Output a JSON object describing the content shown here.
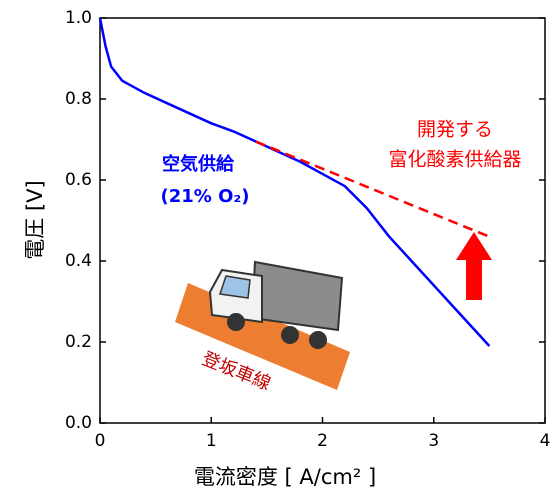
{
  "chart_data": {
    "type": "line",
    "xlabel": "電流密度 [ A/cm² ]",
    "ylabel": "電圧 [V]",
    "xlim": [
      0,
      4
    ],
    "xticks": [
      0,
      1,
      2,
      3,
      4
    ],
    "ylim": [
      0,
      1
    ],
    "yticks": [
      {
        "value": 0,
        "label": "0.0"
      },
      0.2,
      0.4,
      0.6,
      0.8,
      {
        "value": 1,
        "label": "1.0"
      }
    ],
    "series": [
      {
        "color": "#0000ff",
        "dash": false,
        "x": [
          0,
          0.05,
          0.1,
          0.2,
          0.4,
          0.6,
          0.8,
          1.0,
          1.2,
          1.4,
          1.6,
          1.8,
          2.0,
          2.2,
          2.4,
          2.6,
          2.8,
          3.0,
          3.2,
          3.4,
          3.5
        ],
        "values": [
          1.0,
          0.93,
          0.88,
          0.845,
          0.815,
          0.79,
          0.765,
          0.74,
          0.72,
          0.695,
          0.67,
          0.645,
          0.615,
          0.585,
          0.53,
          0.46,
          0.4,
          0.34,
          0.28,
          0.22,
          0.19
        ]
      },
      {
        "color": "#ff0000",
        "dash": true,
        "x": [
          1.4,
          3.5
        ],
        "values": [
          0.695,
          0.46
        ]
      }
    ],
    "annotations": {
      "developed": "開発する",
      "device": "富化酸素供給器",
      "air": "空気供給",
      "air_o2": "(21% O₂)",
      "lane": "登坂車線"
    }
  }
}
